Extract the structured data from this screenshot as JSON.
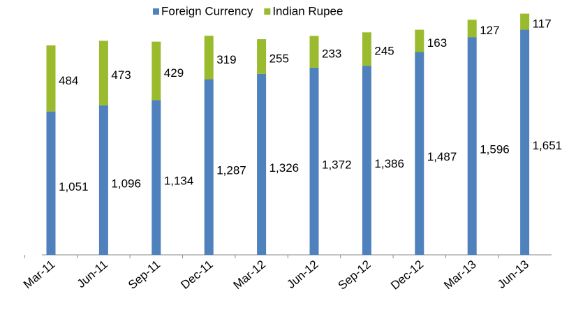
{
  "chart_data": {
    "type": "stacked_bar",
    "categories": [
      "Mar-11",
      "Jun-11",
      "Sep-11",
      "Dec-11",
      "Mar-12",
      "Jun-12",
      "Sep-12",
      "Dec-12",
      "Mar-13",
      "Jun-13"
    ],
    "series": [
      {
        "name": "Foreign Currency",
        "color": "#4f81bd",
        "values": [
          1051,
          1096,
          1134,
          1287,
          1326,
          1372,
          1386,
          1487,
          1596,
          1651
        ],
        "value_labels": [
          "1,051",
          "1,096",
          "1,134",
          "1,287",
          "1,326",
          "1,372",
          "1,386",
          "1,487",
          "1,596",
          "1,651"
        ]
      },
      {
        "name": "Indian Rupee",
        "color": "#9bbb2e",
        "values": [
          484,
          473,
          429,
          319,
          255,
          233,
          245,
          163,
          127,
          117
        ]
      }
    ],
    "ylim": [
      0,
      1868
    ],
    "legend": "top"
  }
}
